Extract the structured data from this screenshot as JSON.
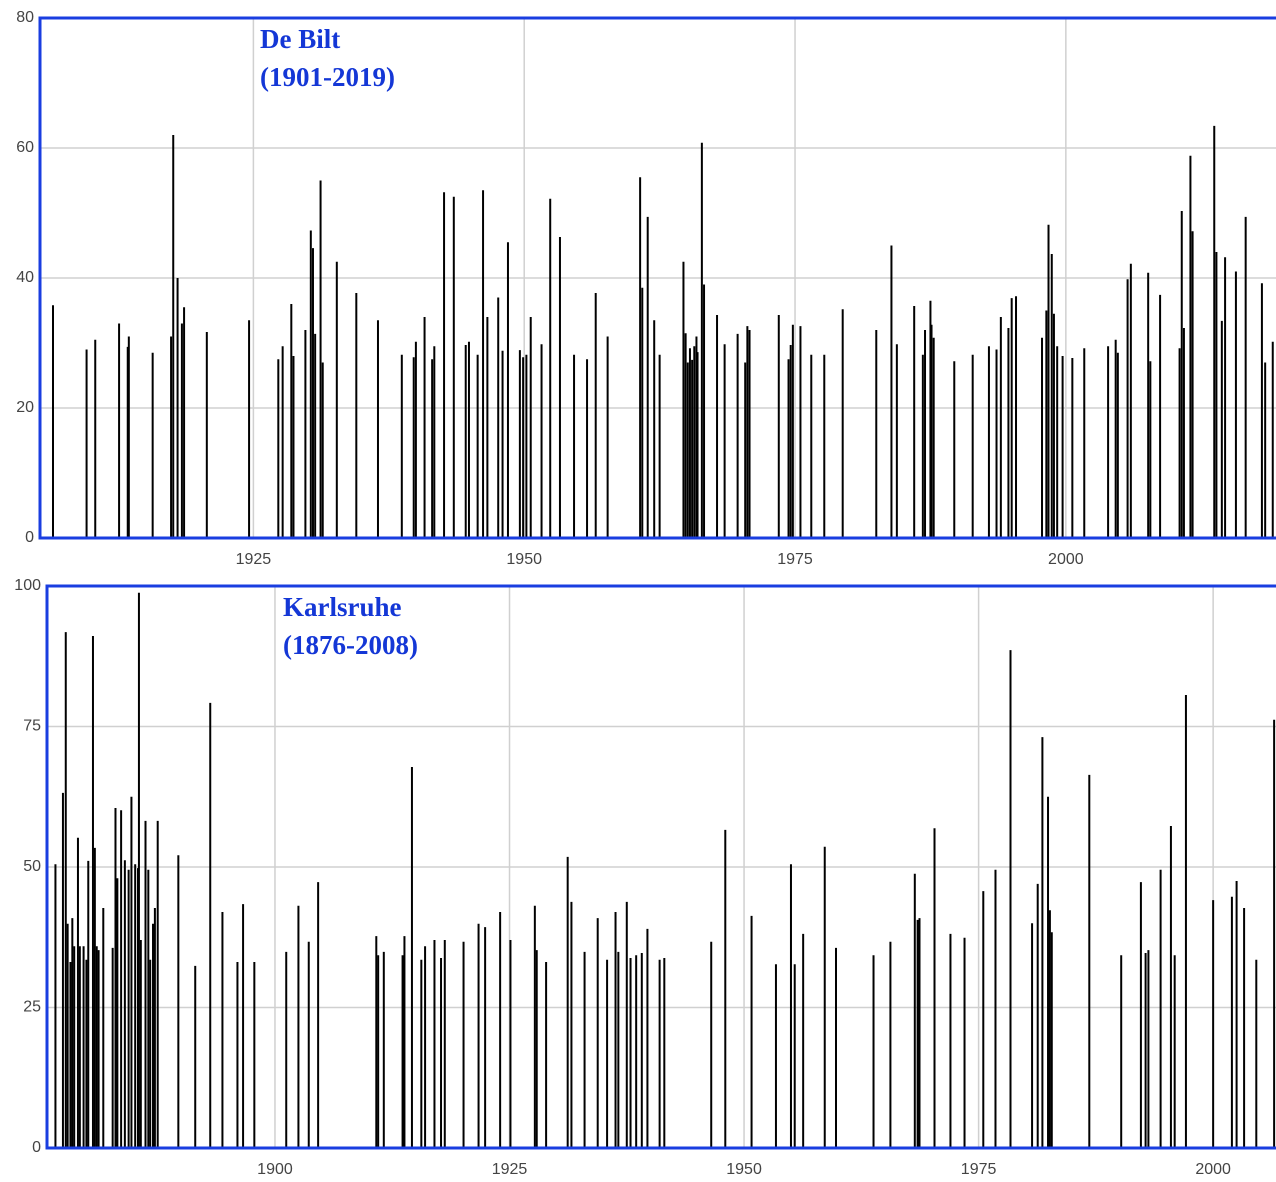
{
  "chart_data": [
    {
      "type": "bar",
      "title": "De Bilt",
      "subtitle": "(1901-2019)",
      "color": "#000000",
      "title_color": "#1437d6",
      "frame_color": "#1a3ee0",
      "grid": true,
      "xlim": [
        1905.3,
        2019.4
      ],
      "ylim": [
        0,
        80
      ],
      "xticks": [
        1925,
        1950,
        1975,
        2000
      ],
      "yticks": [
        0,
        20,
        40,
        60,
        80
      ],
      "x": [
        1906.5,
        1909.6,
        1910.4,
        1912.6,
        1913.4,
        1913.5,
        1915.7,
        1917.4,
        1917.6,
        1918.0,
        1918.4,
        1918.6,
        1920.7,
        1924.6,
        1927.3,
        1927.7,
        1928.5,
        1928.7,
        1929.8,
        1930.3,
        1930.5,
        1930.7,
        1931.2,
        1931.4,
        1932.7,
        1934.5,
        1936.5,
        1938.7,
        1939.8,
        1940.0,
        1940.8,
        1941.5,
        1941.7,
        1942.6,
        1943.5,
        1944.6,
        1944.9,
        1945.7,
        1946.2,
        1946.6,
        1947.6,
        1948.0,
        1948.5,
        1949.6,
        1949.9,
        1950.2,
        1950.6,
        1951.6,
        1952.4,
        1953.3,
        1954.6,
        1955.8,
        1956.6,
        1957.7,
        1960.7,
        1960.9,
        1961.4,
        1962.0,
        1962.5,
        1964.7,
        1964.9,
        1965.1,
        1965.3,
        1965.5,
        1965.7,
        1965.9,
        1966.0,
        1966.4,
        1966.6,
        1967.8,
        1968.5,
        1969.7,
        1970.4,
        1970.6,
        1970.8,
        1973.5,
        1974.4,
        1974.6,
        1974.8,
        1975.5,
        1976.5,
        1977.7,
        1979.4,
        1982.5,
        1983.9,
        1984.4,
        1986.0,
        1986.8,
        1987.0,
        1987.5,
        1987.6,
        1987.8,
        1989.7,
        1991.4,
        1992.9,
        1993.6,
        1994.0,
        1994.7,
        1995.0,
        1995.4,
        1997.8,
        1998.2,
        1998.4,
        1998.7,
        1998.9,
        1999.2,
        1999.7,
        2000.6,
        2001.7,
        2003.9,
        2004.6,
        2004.8,
        2005.7,
        2006.0,
        2007.6,
        2007.8,
        2008.7,
        2010.5,
        2010.7,
        2010.9,
        2011.5,
        2011.7,
        2013.7,
        2013.9,
        2014.4,
        2014.7,
        2015.7,
        2016.6,
        2018.1,
        2018.4,
        2019.1
      ],
      "values": [
        35.8,
        29,
        30.5,
        33,
        29.4,
        31,
        28.5,
        31,
        62,
        40,
        33,
        35.5,
        31.7,
        33.5,
        27.5,
        29.5,
        36,
        28,
        32,
        47.3,
        44.6,
        31.4,
        55,
        27,
        42.5,
        37.7,
        33.5,
        28.2,
        27.8,
        30.2,
        34,
        27.5,
        29.5,
        53.2,
        52.5,
        29.7,
        30.2,
        28.2,
        53.5,
        34,
        37,
        28.8,
        45.5,
        28.9,
        27.8,
        28.2,
        34,
        29.8,
        52.2,
        46.3,
        28.2,
        27.5,
        37.7,
        31,
        55.5,
        38.5,
        49.4,
        33.5,
        28.2,
        42.5,
        31.5,
        27,
        29.2,
        27.4,
        29.5,
        31,
        28.6,
        60.8,
        39,
        34.3,
        29.8,
        31.4,
        27,
        32.6,
        32,
        34.3,
        27.5,
        29.7,
        32.8,
        32.6,
        28.2,
        28.2,
        35.2,
        32,
        45,
        29.8,
        35.7,
        28.2,
        32,
        36.5,
        32.8,
        30.8,
        27.2,
        28.2,
        29.5,
        29,
        34,
        32.3,
        36.9,
        37.2,
        30.8,
        35,
        48.2,
        43.7,
        34.5,
        29.5,
        28,
        27.7,
        29.2,
        29.5,
        30.5,
        28.5,
        39.8,
        42.2,
        40.8,
        27.2,
        37.4,
        29.2,
        50.3,
        32.3,
        58.8,
        47.2,
        63.4,
        44,
        33.4,
        43.2,
        41,
        49.4,
        39.2,
        27,
        30.2
      ]
    },
    {
      "type": "bar",
      "title": "Karlsruhe",
      "subtitle": "(1876-2008)",
      "color": "#000000",
      "title_color": "#1437d6",
      "frame_color": "#1a3ee0",
      "grid": true,
      "xlim": [
        1875.7,
        2006.7
      ],
      "ylim": [
        0,
        100
      ],
      "xticks": [
        1900,
        1925,
        1950,
        1975,
        2000
      ],
      "yticks": [
        0,
        25,
        50,
        75,
        100
      ],
      "x": [
        1876.6,
        1877.4,
        1877.7,
        1877.9,
        1878.2,
        1878.4,
        1878.6,
        1879.0,
        1879.2,
        1879.6,
        1879.9,
        1880.1,
        1880.6,
        1880.8,
        1881.0,
        1881.2,
        1881.7,
        1882.7,
        1883.0,
        1883.2,
        1883.6,
        1884.0,
        1884.4,
        1884.7,
        1885.1,
        1885.4,
        1885.5,
        1885.7,
        1886.2,
        1886.5,
        1886.7,
        1887.0,
        1887.2,
        1887.5,
        1889.7,
        1891.5,
        1893.1,
        1894.4,
        1896.0,
        1896.6,
        1897.8,
        1901.2,
        1902.5,
        1903.6,
        1904.6,
        1910.8,
        1911.0,
        1911.6,
        1913.6,
        1913.8,
        1914.6,
        1915.6,
        1916.0,
        1917.0,
        1917.7,
        1918.1,
        1920.1,
        1921.7,
        1922.4,
        1924.0,
        1925.1,
        1927.7,
        1927.9,
        1928.9,
        1931.2,
        1931.6,
        1933.0,
        1934.4,
        1935.4,
        1936.3,
        1936.6,
        1937.5,
        1937.9,
        1938.5,
        1939.1,
        1939.7,
        1941.0,
        1941.5,
        1946.5,
        1948.0,
        1950.8,
        1953.4,
        1955.0,
        1955.4,
        1956.3,
        1958.6,
        1959.8,
        1963.8,
        1965.6,
        1968.2,
        1968.5,
        1968.7,
        1970.3,
        1972.0,
        1973.5,
        1975.5,
        1976.8,
        1978.4,
        1980.7,
        1981.3,
        1981.8,
        1982.4,
        1982.6,
        1982.8,
        1986.8,
        1990.2,
        1992.3,
        1992.8,
        1993.1,
        1994.4,
        1995.5,
        1995.9,
        1997.1,
        2000.0,
        2002.0,
        2002.5,
        2003.3,
        2004.6,
        2006.5
      ],
      "values": [
        50.5,
        63.2,
        91.8,
        39.9,
        33.1,
        40.9,
        35.9,
        55.2,
        35.9,
        35.9,
        33.5,
        51.1,
        91.1,
        53.4,
        35.9,
        35.2,
        42.7,
        35.6,
        60.5,
        48,
        60.1,
        51.2,
        49.5,
        62.5,
        50.5,
        49.8,
        98.8,
        37,
        58.2,
        49.5,
        33.5,
        39.9,
        42.7,
        58.2,
        52.1,
        32.4,
        79.2,
        42,
        33.1,
        43.4,
        33.1,
        34.9,
        43.1,
        36.7,
        47.3,
        37.7,
        34.3,
        34.9,
        34.3,
        37.7,
        67.8,
        33.5,
        35.9,
        37,
        33.8,
        37,
        36.7,
        39.9,
        39.3,
        42,
        37,
        43.1,
        35.2,
        33.1,
        51.8,
        43.8,
        34.9,
        40.9,
        33.5,
        42,
        34.9,
        43.8,
        33.8,
        34.3,
        34.7,
        39,
        33.5,
        33.8,
        36.7,
        56.6,
        41.3,
        32.7,
        50.5,
        32.7,
        38.1,
        53.6,
        35.6,
        34.3,
        36.7,
        48.8,
        40.6,
        40.9,
        56.9,
        38.1,
        37.4,
        45.7,
        49.5,
        88.6,
        40,
        47,
        73.1,
        62.5,
        42.3,
        38.4,
        66.4,
        34.3,
        47.3,
        34.7,
        35.2,
        49.5,
        57.3,
        34.3,
        80.6,
        44.1,
        44.7,
        47.5,
        42.7,
        33.5,
        76.2
      ]
    }
  ]
}
